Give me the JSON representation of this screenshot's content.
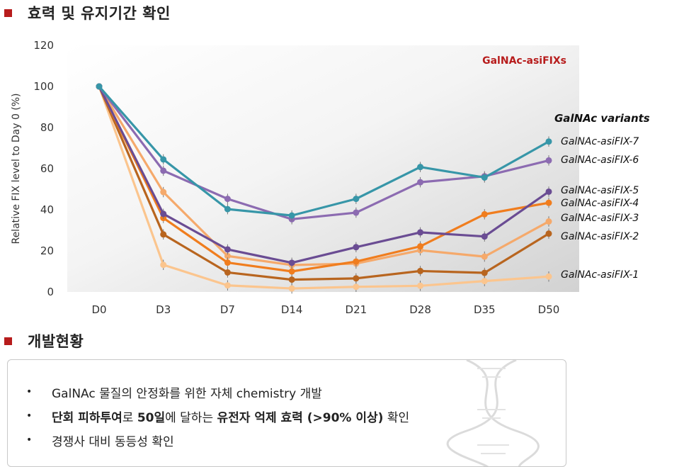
{
  "section1": {
    "title": "효력 및 유지기간 확인"
  },
  "section2": {
    "title": "개발현황"
  },
  "colors": {
    "accent": "#b71c1c"
  },
  "chart_data": {
    "type": "line",
    "title": "GalNAc-asiFIXs",
    "ylabel": "Relative FIX level to Day 0 (%)",
    "xlabel": "",
    "legend_title": "GalNAc variants",
    "legend_position": "right",
    "categories": [
      "D0",
      "D3",
      "D7",
      "D14",
      "D21",
      "D28",
      "D35",
      "D50"
    ],
    "ylim": [
      0,
      120
    ],
    "yticks": [
      0,
      20,
      40,
      60,
      80,
      100,
      120
    ],
    "series": [
      {
        "name": "GalNAc-asiFIX-7",
        "color": "#3796a8",
        "values": [
          100,
          64.5,
          40.3,
          37.2,
          45.3,
          60.8,
          55.7,
          73.2
        ]
      },
      {
        "name": "GalNAc-asiFIX-6",
        "color": "#8c6bb1",
        "values": [
          100,
          59.0,
          45.3,
          35.4,
          38.6,
          53.4,
          56.3,
          64.0
        ]
      },
      {
        "name": "GalNAc-asiFIX-5",
        "color": "#6a4c93",
        "values": [
          100,
          38.0,
          20.7,
          14.2,
          21.8,
          29.0,
          27.0,
          48.8
        ]
      },
      {
        "name": "GalNAc-asiFIX-4",
        "color": "#f07d1e",
        "values": [
          100,
          36.0,
          14.3,
          10.0,
          14.8,
          22.2,
          37.8,
          43.4
        ]
      },
      {
        "name": "GalNAc-asiFIX-3",
        "color": "#f5a96b",
        "values": [
          100,
          48.6,
          17.5,
          13.1,
          13.8,
          20.3,
          17.2,
          34.3
        ]
      },
      {
        "name": "GalNAc-asiFIX-2",
        "color": "#b8651f",
        "values": [
          100,
          28.0,
          9.5,
          6.0,
          6.6,
          10.2,
          9.3,
          28.4
        ]
      },
      {
        "name": "GalNAc-asiFIX-1",
        "color": "#fbc58e",
        "values": [
          100,
          13.2,
          3.2,
          1.7,
          2.5,
          3.0,
          5.3,
          7.5
        ]
      }
    ]
  },
  "bullets": {
    "marker": "•",
    "item1": "GalNAc 물질의 안정화를 위한 자체 chemistry 개발",
    "item2_a": "단회 피하투여",
    "item2_b": "로 ",
    "item2_c": "50일",
    "item2_d": "에 달하는 ",
    "item2_e": "유전자 억제 효력 (>90% 이상)",
    "item2_f": " 확인",
    "item3": "경쟁사 대비 동등성 확인"
  }
}
